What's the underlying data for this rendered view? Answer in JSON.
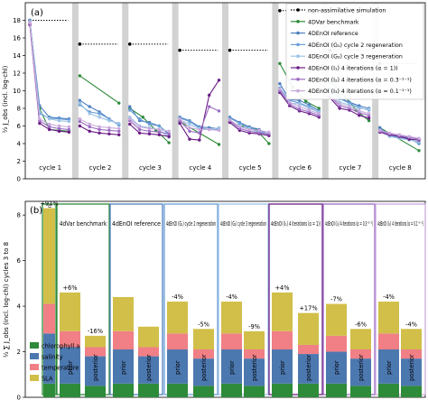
{
  "chart_data": [
    {
      "panel_label": "(a)",
      "type": "line",
      "ylabel": "½ J_obs (incl. log-chl)",
      "ylim": [
        0,
        20
      ],
      "yticks": [
        0,
        2,
        4,
        6,
        8,
        10,
        12,
        14,
        16,
        18
      ],
      "cycle_labels": [
        "cycle 1",
        "cycle 2",
        "cycle 3",
        "cycle 4",
        "cycle 5",
        "cycle 6",
        "cycle 7",
        "cycle 8"
      ],
      "nonassim_values": [
        18.0,
        15.3,
        15.3,
        14.6,
        14.6,
        19.1,
        14.6,
        13.1
      ],
      "legend": [
        {
          "name": "non-assimilative simulation",
          "color": "#000000",
          "style": "dotted"
        },
        {
          "name": "4DVar benchmark",
          "color": "#2e8b3a",
          "style": "solid"
        },
        {
          "name": "4DEnOI reference",
          "color": "#4f7fc0",
          "style": "solid"
        },
        {
          "name": "4DEnOI (G₁) cycle 2 regeneration",
          "color": "#6a9fd6",
          "style": "solid"
        },
        {
          "name": "4DEnOI (G₂) cycle 3 regeneration",
          "color": "#9dc3e6",
          "style": "solid"
        },
        {
          "name": "4DEnOI (I₁) 4 iterations (α = 1))",
          "color": "#6b1d86",
          "style": "solid"
        },
        {
          "name": "4DEnOI (I₂) 4 iterations (α = 0.3⁻¹⁻¹)",
          "color": "#9b6bc2",
          "style": "solid"
        },
        {
          "name": "4DEnOI (I₃) 4 iterations (α = 0.1⁻¹⁻¹)",
          "color": "#c9a9dd",
          "style": "solid"
        }
      ],
      "series": [
        {
          "key": "var",
          "color": "#2e8b3a",
          "cycles": [
            [
              18.0,
              8.0,
              5.6,
              5.5,
              5.4
            ],
            [
              11.7,
              8.6
            ],
            [
              8.0,
              7.0,
              5.5,
              4.1
            ],
            [
              6.5,
              3.9
            ],
            [
              6.5,
              5.9,
              5.6,
              4.0
            ],
            [
              13.1,
              10.4,
              8.8,
              8.0
            ],
            [
              11.0,
              9.7,
              7.8,
              6.6
            ],
            [
              5.8,
              3.2
            ]
          ]
        },
        {
          "key": "ref",
          "color": "#4f7fc0",
          "cycles": [
            [
              17.9,
              8.3,
              7.0,
              6.9,
              6.8
            ],
            [
              8.9,
              8.2,
              7.6,
              6.8,
              6.1
            ],
            [
              8.2,
              6.6,
              6.4,
              6.0,
              5.1
            ],
            [
              7.0,
              6.6,
              5.9,
              5.8,
              5.7
            ],
            [
              7.0,
              6.4,
              5.9,
              5.6,
              5.0
            ],
            [
              10.8,
              9.0,
              8.9,
              8.4,
              7.7
            ],
            [
              10.2,
              9.2,
              8.7,
              8.3,
              8.0
            ],
            [
              5.8,
              5.0,
              4.8,
              4.6,
              4.0
            ]
          ]
        },
        {
          "key": "g1",
          "color": "#6a9fd6",
          "cycles": [
            [
              18.0,
              7.4,
              6.9,
              6.8,
              6.7
            ],
            [
              8.4,
              7.6,
              7.4,
              6.8,
              6.1
            ],
            [
              7.8,
              6.8,
              6.2,
              6.0,
              5.0
            ],
            [
              6.9,
              6.5,
              5.8,
              5.6,
              5.6
            ],
            [
              6.9,
              6.3,
              5.8,
              5.4,
              5.0
            ],
            [
              10.3,
              8.9,
              8.6,
              8.2,
              7.5
            ],
            [
              9.8,
              9.1,
              8.6,
              8.1,
              7.8
            ],
            [
              5.6,
              4.9,
              4.7,
              4.5,
              4.1
            ]
          ]
        },
        {
          "key": "g2",
          "color": "#9dc3e6",
          "cycles": [
            [
              17.8,
              7.6,
              6.8,
              6.6,
              6.5
            ],
            [
              8.6,
              7.4,
              7.0,
              6.6,
              6.3
            ],
            [
              7.0,
              6.0,
              5.8,
              5.6,
              4.7
            ],
            [
              6.7,
              6.2,
              5.7,
              5.6,
              5.8
            ],
            [
              6.6,
              6.0,
              5.7,
              5.2,
              5.2
            ],
            [
              10.1,
              8.6,
              8.5,
              8.0,
              7.6
            ],
            [
              9.5,
              8.7,
              8.4,
              8.0,
              7.9
            ],
            [
              5.4,
              4.8,
              4.6,
              4.4,
              4.2
            ]
          ]
        },
        {
          "key": "i1",
          "color": "#6b1d86",
          "cycles": [
            [
              17.5,
              6.3,
              5.6,
              5.4,
              5.3
            ],
            [
              6.0,
              5.4,
              5.2,
              5.1,
              5.0
            ],
            [
              6.2,
              5.2,
              5.1,
              5.0,
              4.8
            ],
            [
              6.3,
              4.5,
              4.4,
              9.5,
              11.2
            ],
            [
              6.4,
              5.5,
              5.2,
              5.1,
              4.9
            ],
            [
              9.8,
              8.3,
              7.7,
              7.4,
              7.0
            ],
            [
              9.2,
              8.0,
              7.8,
              7.2,
              6.9
            ],
            [
              5.3,
              5.0,
              4.8,
              4.5,
              4.4
            ]
          ]
        },
        {
          "key": "i2",
          "color": "#9b6bc2",
          "cycles": [
            [
              17.7,
              6.6,
              5.9,
              5.7,
              5.6
            ],
            [
              6.5,
              5.9,
              5.6,
              5.5,
              5.4
            ],
            [
              6.6,
              5.6,
              5.4,
              5.3,
              5.1
            ],
            [
              6.6,
              5.4,
              5.2,
              8.2,
              7.7
            ],
            [
              6.6,
              5.7,
              5.4,
              5.2,
              5.1
            ],
            [
              10.0,
              8.5,
              7.9,
              7.6,
              7.2
            ],
            [
              9.4,
              8.3,
              8.0,
              7.5,
              7.2
            ],
            [
              5.4,
              5.1,
              4.9,
              4.7,
              4.5
            ]
          ]
        },
        {
          "key": "i3",
          "color": "#c9a9dd",
          "cycles": [
            [
              17.8,
              6.8,
              6.2,
              6.0,
              5.9
            ],
            [
              6.8,
              6.2,
              5.9,
              5.8,
              5.7
            ],
            [
              6.8,
              5.9,
              5.7,
              5.6,
              5.4
            ],
            [
              6.8,
              5.8,
              5.6,
              5.6,
              5.5
            ],
            [
              6.7,
              5.9,
              5.6,
              5.5,
              5.3
            ],
            [
              10.2,
              8.7,
              8.2,
              7.8,
              7.4
            ],
            [
              9.6,
              8.5,
              8.2,
              7.7,
              7.4
            ],
            [
              5.5,
              5.2,
              5.0,
              4.8,
              4.6
            ]
          ]
        }
      ]
    },
    {
      "panel_label": "(b)",
      "type": "bar",
      "stacked": true,
      "ylabel": "½ ∑ J_obs (incl. log-chl) cycles 3 to 8",
      "ylim": [
        0,
        8.6
      ],
      "yticks": [
        0,
        2,
        4,
        6,
        8
      ],
      "legend": [
        {
          "name": "chlorophyll a",
          "color": "#2e8b3a"
        },
        {
          "name": "salinity",
          "color": "#4c78b0"
        },
        {
          "name": "temperature",
          "color": "#f07f86"
        },
        {
          "name": "SLA",
          "color": "#d1bf4a"
        }
      ],
      "groups": [
        {
          "title": "non-assimilative simulation",
          "frame_color": "#2e8b3a",
          "bars": [
            {
              "label": "",
              "pct": "+91%",
              "segments": [
                0.6,
                2.2,
                1.3,
                4.2
              ]
            }
          ]
        },
        {
          "title": "4dVar benchmark",
          "frame_color": "#2e8b3a",
          "bars": [
            {
              "label": "prior",
              "pct": "+6%",
              "segments": [
                0.6,
                1.6,
                0.7,
                1.7
              ]
            },
            {
              "label": "posterior",
              "pct": "-16%",
              "segments": [
                0.5,
                1.3,
                0.4,
                0.5
              ]
            }
          ]
        },
        {
          "title": "4dEnOI reference",
          "frame_color": "#4f7fc0",
          "bars": [
            {
              "label": "prior",
              "pct": "",
              "segments": [
                0.6,
                1.5,
                0.8,
                1.5
              ]
            },
            {
              "label": "posterior",
              "pct": "",
              "segments": [
                0.6,
                1.2,
                0.4,
                0.9
              ]
            }
          ]
        },
        {
          "title": "4dEnOI (G₁) cycle 2 regeneration",
          "frame_color": "#6a9fd6",
          "bars": [
            {
              "label": "prior",
              "pct": "-4%",
              "segments": [
                0.6,
                1.5,
                0.7,
                1.4
              ]
            },
            {
              "label": "posterior",
              "pct": "-5%",
              "segments": [
                0.5,
                1.2,
                0.4,
                0.9
              ]
            }
          ]
        },
        {
          "title": "4dEnOI (G₂) cycle 3 regeneration",
          "frame_color": "#9dc3e6",
          "bars": [
            {
              "label": "prior",
              "pct": "-4%",
              "segments": [
                0.6,
                1.5,
                0.7,
                1.4
              ]
            },
            {
              "label": "posterior",
              "pct": "-9%",
              "segments": [
                0.5,
                1.2,
                0.4,
                0.8
              ]
            }
          ]
        },
        {
          "title": "4dEnOI (I₁) 4 iterations (α = 1))",
          "frame_color": "#6b1d86",
          "bars": [
            {
              "label": "prior",
              "pct": "+4%",
              "segments": [
                0.6,
                1.5,
                0.8,
                1.7
              ]
            },
            {
              "label": "posterior",
              "pct": "+17%",
              "segments": [
                0.6,
                1.3,
                0.4,
                1.4
              ]
            }
          ]
        },
        {
          "title": "4dEnOI (I₂) 4 iterations (α = 0.3⁻¹⁻¹)",
          "frame_color": "#9b6bc2",
          "bars": [
            {
              "label": "prior",
              "pct": "-7%",
              "segments": [
                0.6,
                1.4,
                0.7,
                1.4
              ]
            },
            {
              "label": "posterior",
              "pct": "-6%",
              "segments": [
                0.5,
                1.2,
                0.4,
                0.9
              ]
            }
          ]
        },
        {
          "title": "4dEnOI (I₃) 4 iterations (α = 0.1⁻¹⁻¹)",
          "frame_color": "#c9a9dd",
          "bars": [
            {
              "label": "prior",
              "pct": "-4%",
              "segments": [
                0.6,
                1.5,
                0.7,
                1.4
              ]
            },
            {
              "label": "posterior",
              "pct": "-4%",
              "segments": [
                0.5,
                1.2,
                0.4,
                0.9
              ]
            }
          ]
        }
      ]
    }
  ]
}
